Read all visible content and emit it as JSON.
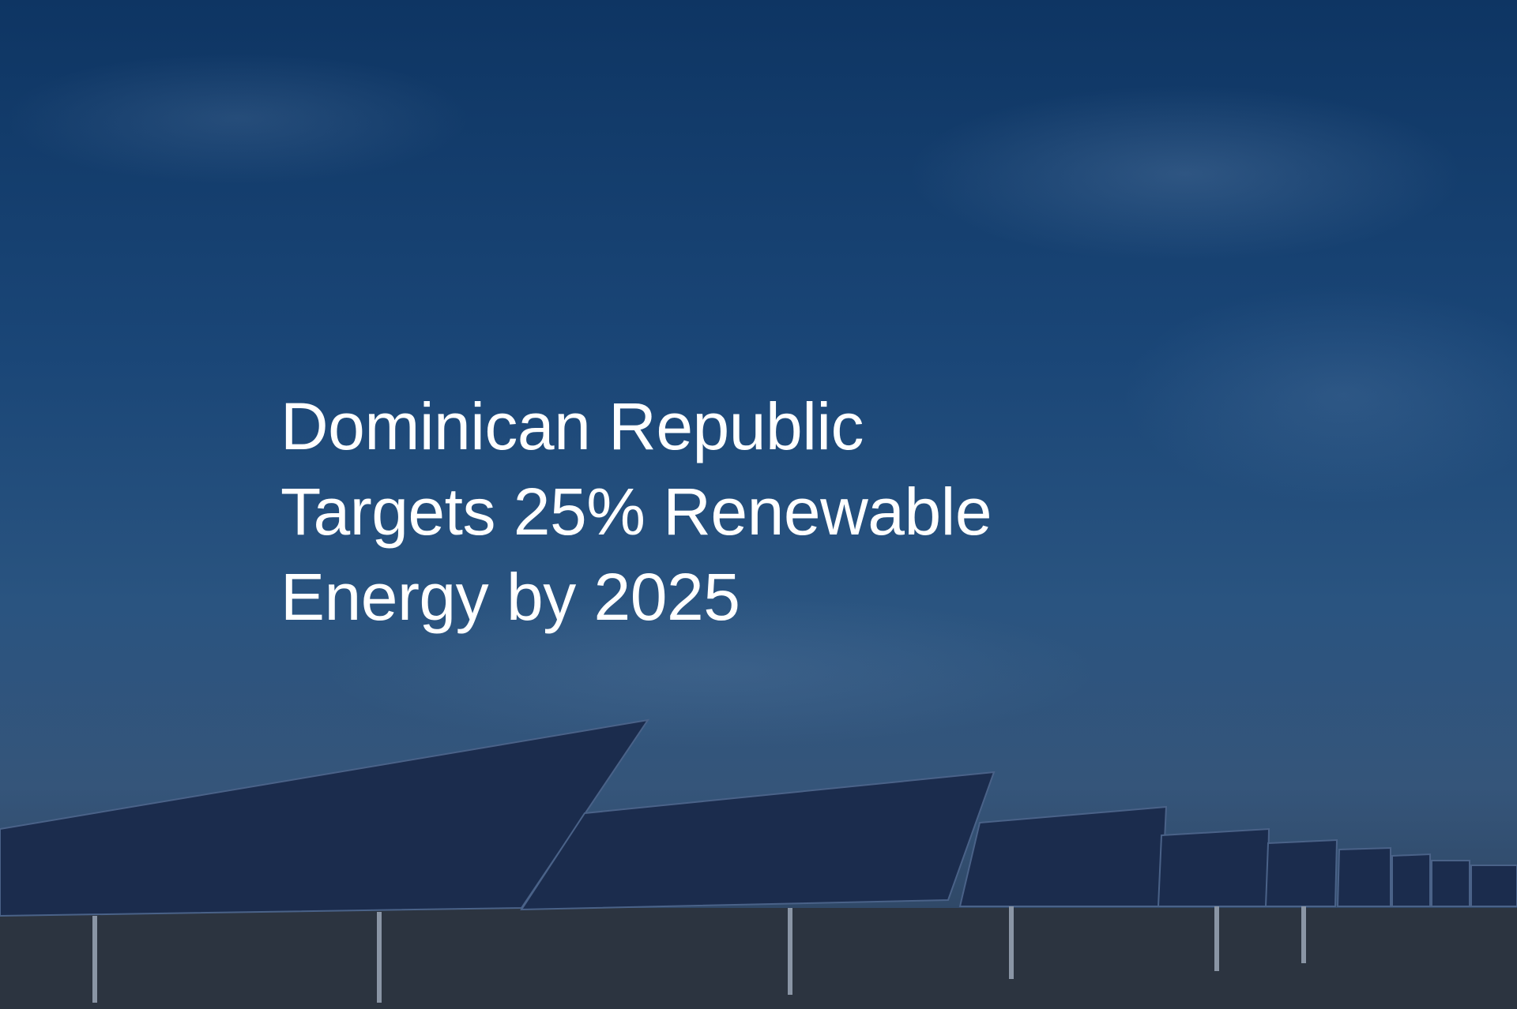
{
  "hero": {
    "title_lines": [
      "Dominican Republic",
      "Targets 25% Renewable",
      "Energy by 2025"
    ]
  },
  "colors": {
    "overlay": "#1a4677",
    "text": "#ffffff"
  }
}
